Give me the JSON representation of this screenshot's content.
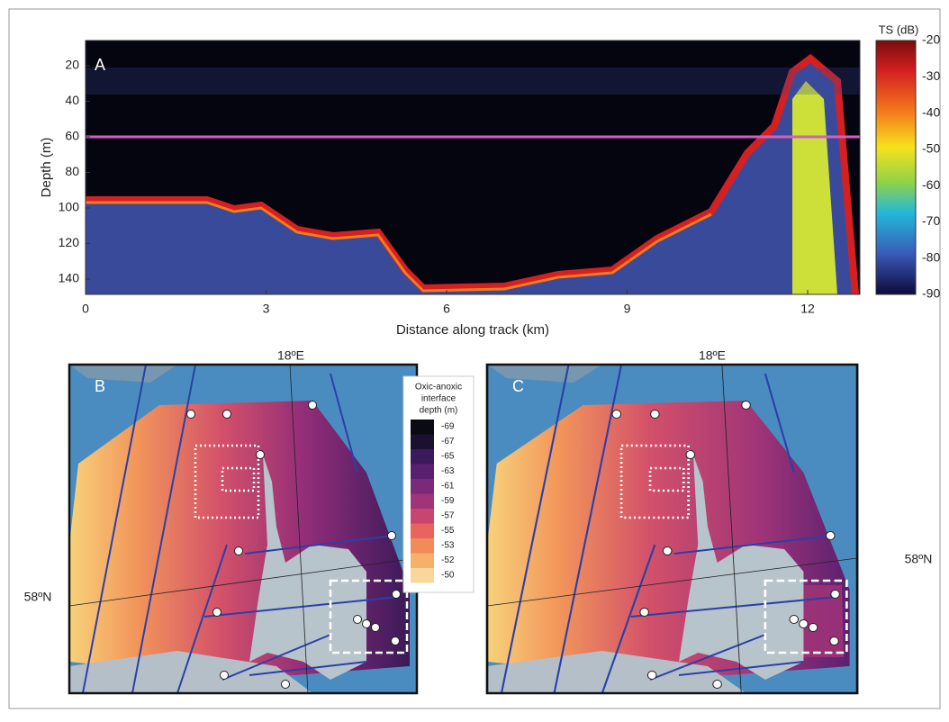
{
  "panel_a": {
    "label": "A",
    "y_axis_label": "Depth (m)",
    "x_axis_label": "Distance along track (km)",
    "y_ticks": [
      20,
      40,
      60,
      80,
      100,
      120,
      140
    ],
    "x_ticks": [
      0,
      3,
      6,
      9,
      12
    ],
    "colorbar_title": "TS (dB)",
    "colorbar_ticks": [
      -20,
      -30,
      -40,
      -50,
      -60,
      -70,
      -80,
      -90
    ]
  },
  "panel_b": {
    "label": "B",
    "lon_label": "18ºE",
    "lat_label": "58ºN",
    "legend_title": [
      "Oxic-anoxic",
      "interface",
      "depth (m)"
    ],
    "legend_values": [
      -69,
      -67,
      -65,
      -63,
      -61,
      -59,
      -57,
      -55,
      -53,
      -52,
      -50
    ]
  },
  "panel_c": {
    "label": "C",
    "lon_label": "18ºE",
    "lat_label": "58ºN"
  }
}
